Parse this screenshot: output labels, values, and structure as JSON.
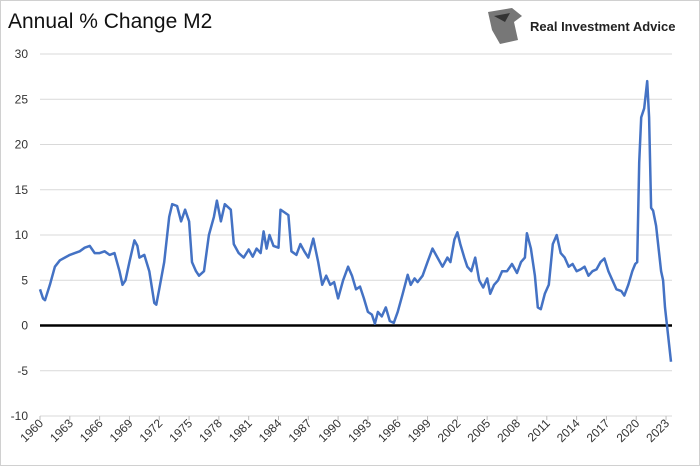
{
  "chart_data": {
    "type": "line",
    "title": "Annual % Change M2",
    "brand": "Real Investment Advice",
    "x": [
      1960.0,
      1960.3,
      1960.5,
      1961,
      1961.5,
      1962,
      1962.5,
      1963,
      1963.5,
      1964,
      1964.5,
      1965,
      1965.5,
      1966,
      1966.5,
      1967,
      1967.5,
      1968,
      1968.3,
      1968.6,
      1969,
      1969.5,
      1969.8,
      1970,
      1970.5,
      1971,
      1971.5,
      1971.7,
      1972,
      1972.5,
      1973,
      1973.3,
      1973.8,
      1974.2,
      1974.6,
      1975,
      1975.3,
      1975.7,
      1976,
      1976.5,
      1977,
      1977.5,
      1977.8,
      1978.2,
      1978.6,
      1979.2,
      1979.5,
      1980,
      1980.5,
      1981,
      1981.4,
      1981.8,
      1982.2,
      1982.5,
      1982.8,
      1983.1,
      1983.5,
      1984,
      1984.2,
      1984.6,
      1985,
      1985.3,
      1985.8,
      1986.2,
      1986.6,
      1987,
      1987.5,
      1988,
      1988.4,
      1988.8,
      1989.2,
      1989.6,
      1990,
      1990.5,
      1991,
      1991.4,
      1991.8,
      1992.2,
      1992.6,
      1993,
      1993.4,
      1993.7,
      1994,
      1994.4,
      1994.8,
      1995.2,
      1995.6,
      1996,
      1996.5,
      1997,
      1997.3,
      1997.7,
      1998,
      1998.5,
      1999,
      1999.5,
      2000,
      2000.5,
      2001,
      2001.3,
      2001.7,
      2002,
      2002.3,
      2002.7,
      2003,
      2003.4,
      2003.8,
      2004.2,
      2004.6,
      2005,
      2005.3,
      2005.7,
      2006.1,
      2006.5,
      2007,
      2007.5,
      2008,
      2008.4,
      2008.8,
      2009,
      2009.4,
      2009.8,
      2010.1,
      2010.4,
      2010.8,
      2011.2,
      2011.6,
      2012,
      2012.4,
      2012.8,
      2013.2,
      2013.6,
      2014,
      2014.4,
      2014.8,
      2015.2,
      2015.6,
      2016,
      2016.4,
      2016.8,
      2017.2,
      2017.6,
      2018,
      2018.5,
      2018.8,
      2019.2,
      2019.6,
      2019.9,
      2020.1,
      2020.3,
      2020.5,
      2020.8,
      2021.1,
      2021.3,
      2021.5,
      2021.7,
      2022,
      2022.3,
      2022.5,
      2022.7,
      2022.9,
      2023.1,
      2023.3,
      2023.5
    ],
    "series": [
      {
        "name": "M2",
        "color": "#4472c4",
        "values": [
          4,
          3,
          2.8,
          4.5,
          6.5,
          7.2,
          7.5,
          7.8,
          8,
          8.2,
          8.6,
          8.8,
          8,
          8,
          8.2,
          7.8,
          8,
          6,
          4.5,
          5,
          7,
          9.4,
          8.8,
          7.5,
          7.8,
          6,
          2.5,
          2.3,
          4,
          7,
          12,
          13.4,
          13.2,
          11.5,
          12.8,
          11.5,
          7,
          6,
          5.5,
          6,
          10,
          12,
          13.8,
          11.5,
          13.4,
          12.8,
          9,
          8,
          7.5,
          8.4,
          7.6,
          8.5,
          8,
          10.4,
          8.5,
          10,
          8.8,
          8.6,
          12.8,
          12.5,
          12.2,
          8.2,
          7.8,
          9,
          8.2,
          7.5,
          9.6,
          7,
          4.5,
          5.5,
          4.5,
          4.8,
          3,
          5,
          6.5,
          5.5,
          4,
          4.3,
          3,
          1.5,
          1.2,
          0.2,
          1.5,
          1,
          2,
          0.5,
          0.3,
          1.5,
          3.5,
          5.6,
          4.5,
          5.2,
          4.8,
          5.5,
          7,
          8.5,
          7.5,
          6.5,
          7.5,
          7,
          9.5,
          10.3,
          9,
          7.5,
          6.5,
          6,
          7.5,
          5,
          4.2,
          5.2,
          3.5,
          4.5,
          5,
          6,
          6,
          6.8,
          5.8,
          7,
          7.5,
          10.2,
          8.5,
          5.5,
          2,
          1.8,
          3.5,
          4.5,
          9,
          10,
          8,
          7.5,
          6.5,
          6.8,
          6,
          6.2,
          6.5,
          5.5,
          6,
          6.2,
          7,
          7.4,
          6,
          5,
          4,
          3.8,
          3.3,
          4.5,
          6,
          6.8,
          7,
          18,
          23,
          24,
          27,
          23,
          13,
          12.7,
          11,
          8,
          6,
          5,
          2,
          0,
          -2,
          -4
        ]
      }
    ],
    "xlim": [
      1960,
      2023.6
    ],
    "xticks": [
      1960,
      1963,
      1966,
      1969,
      1972,
      1975,
      1978,
      1981,
      1984,
      1987,
      1990,
      1993,
      1996,
      1999,
      2002,
      2005,
      2008,
      2011,
      2014,
      2017,
      2020,
      2023
    ],
    "ylim": [
      -10,
      30
    ],
    "yticks": [
      -10,
      -5,
      0,
      5,
      10,
      15,
      20,
      25,
      30
    ],
    "grid": true
  }
}
